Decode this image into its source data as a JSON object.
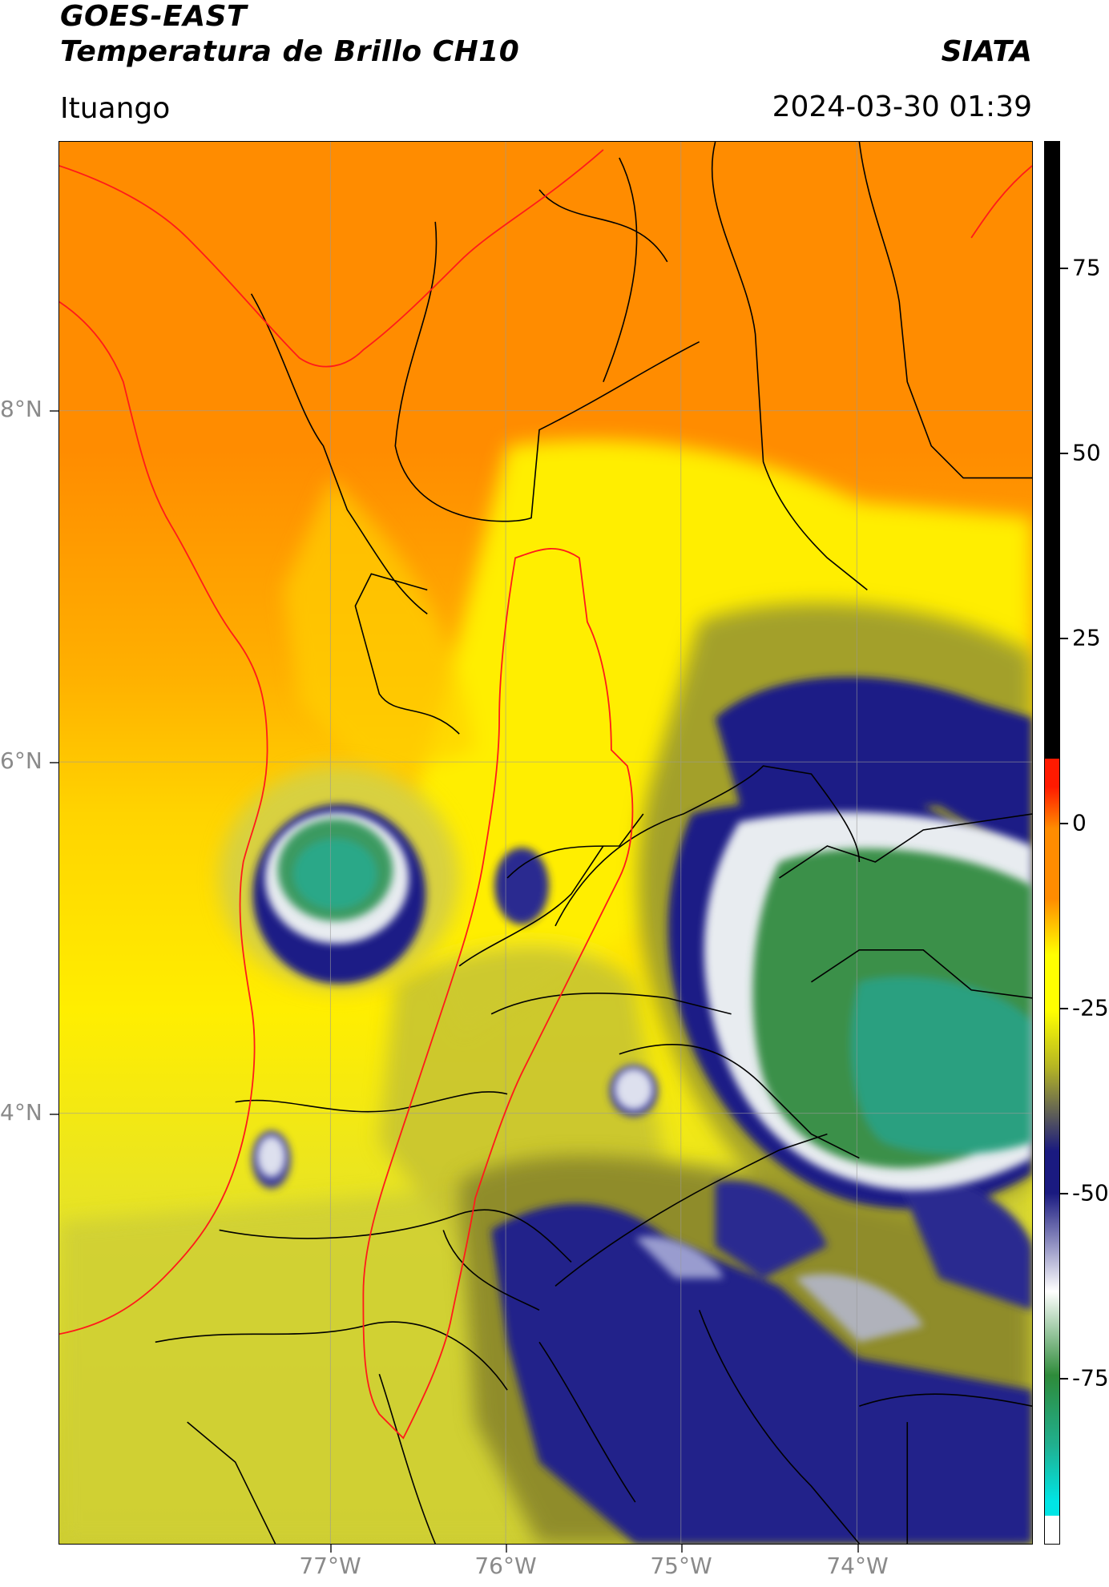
{
  "header": {
    "satellite": "GOES-EAST",
    "product": "Temperatura de Brillo CH10",
    "organization": "SIATA",
    "region": "Ituango",
    "timestamp": "2024-03-30 01:39"
  },
  "map": {
    "lat_ticks": [
      "8°N",
      "6°N",
      "4°N"
    ],
    "lon_ticks": [
      "77°W",
      "76°W",
      "75°W",
      "74°W"
    ]
  },
  "colorbar": {
    "ticks": [
      "75",
      "50",
      "25",
      "0",
      "-25",
      "-50",
      "-75"
    ],
    "colors": {
      "above_10": "#000000",
      "red": "#ff1a00",
      "orange": "#ff8c00",
      "yellow": "#ffff00",
      "olive": "#b5b524",
      "navy": "#1a1a80",
      "white": "#ffffff",
      "green": "#2e8b3a",
      "teal": "#20b090",
      "cyan": "#00e5e5"
    }
  }
}
